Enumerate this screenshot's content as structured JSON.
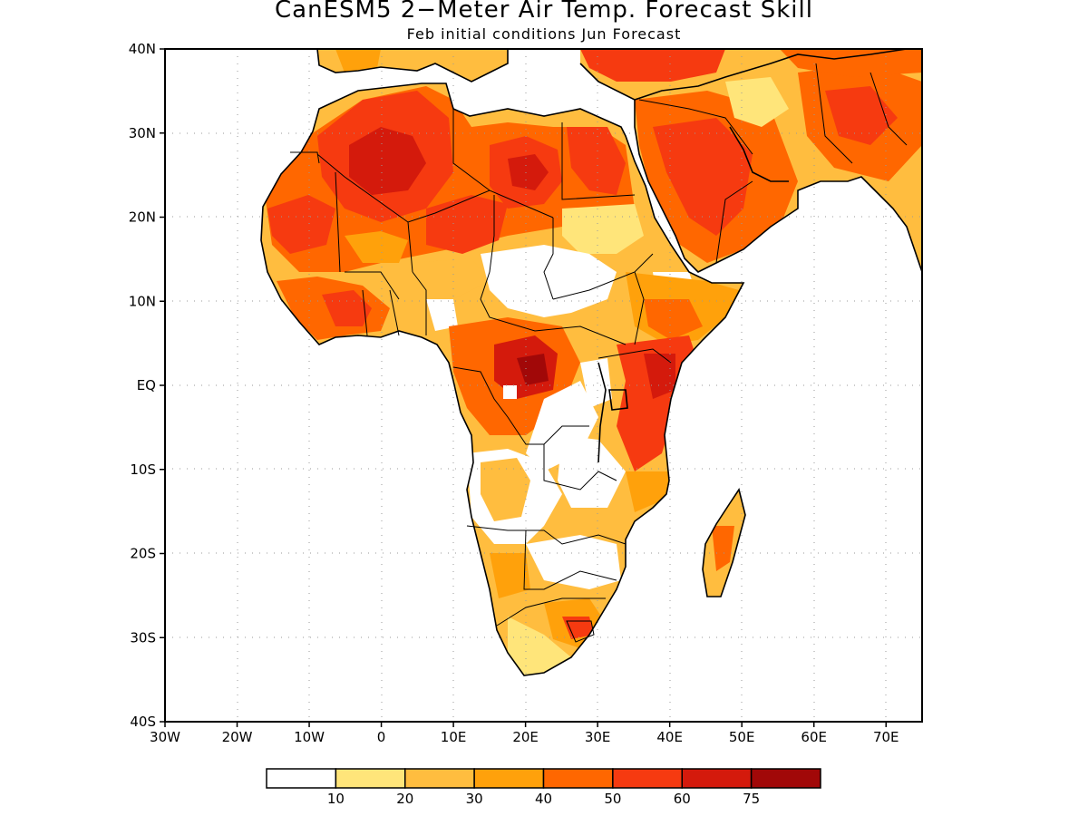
{
  "title": "CanESM5 2−Meter Air Temp. Forecast Skill",
  "subtitle": "Feb initial conditions  Jun Forecast",
  "map": {
    "lon_range": [
      -30,
      75
    ],
    "lat_range": [
      -40,
      40
    ],
    "lat_ticks": [
      {
        "value": 40,
        "label": "40N"
      },
      {
        "value": 30,
        "label": "30N"
      },
      {
        "value": 20,
        "label": "20N"
      },
      {
        "value": 10,
        "label": "10N"
      },
      {
        "value": 0,
        "label": "EQ"
      },
      {
        "value": -10,
        "label": "10S"
      },
      {
        "value": -20,
        "label": "20S"
      },
      {
        "value": -30,
        "label": "30S"
      },
      {
        "value": -40,
        "label": "40S"
      }
    ],
    "lon_ticks": [
      {
        "value": -30,
        "label": "30W"
      },
      {
        "value": -20,
        "label": "20W"
      },
      {
        "value": -10,
        "label": "10W"
      },
      {
        "value": 0,
        "label": "0"
      },
      {
        "value": 10,
        "label": "10E"
      },
      {
        "value": 20,
        "label": "20E"
      },
      {
        "value": 30,
        "label": "30E"
      },
      {
        "value": 40,
        "label": "40E"
      },
      {
        "value": 50,
        "label": "50E"
      },
      {
        "value": 60,
        "label": "60E"
      },
      {
        "value": 70,
        "label": "70E"
      }
    ],
    "grid": true
  },
  "colorbar": {
    "colors": [
      "#ffffff",
      "#ffe57a",
      "#ffbd3f",
      "#ffa10b",
      "#ff6700",
      "#f63a10",
      "#d41a0c",
      "#a10808"
    ],
    "labels": [
      "10",
      "20",
      "30",
      "40",
      "50",
      "60",
      "75"
    ]
  },
  "colors": {
    "land_low": "#ffffff",
    "level1": "#ffe57a",
    "level2": "#ffbd3f",
    "level3": "#ffa10b",
    "level4": "#ff6700",
    "level5": "#f63a10",
    "level6": "#d41a0c",
    "level7": "#a10808"
  }
}
